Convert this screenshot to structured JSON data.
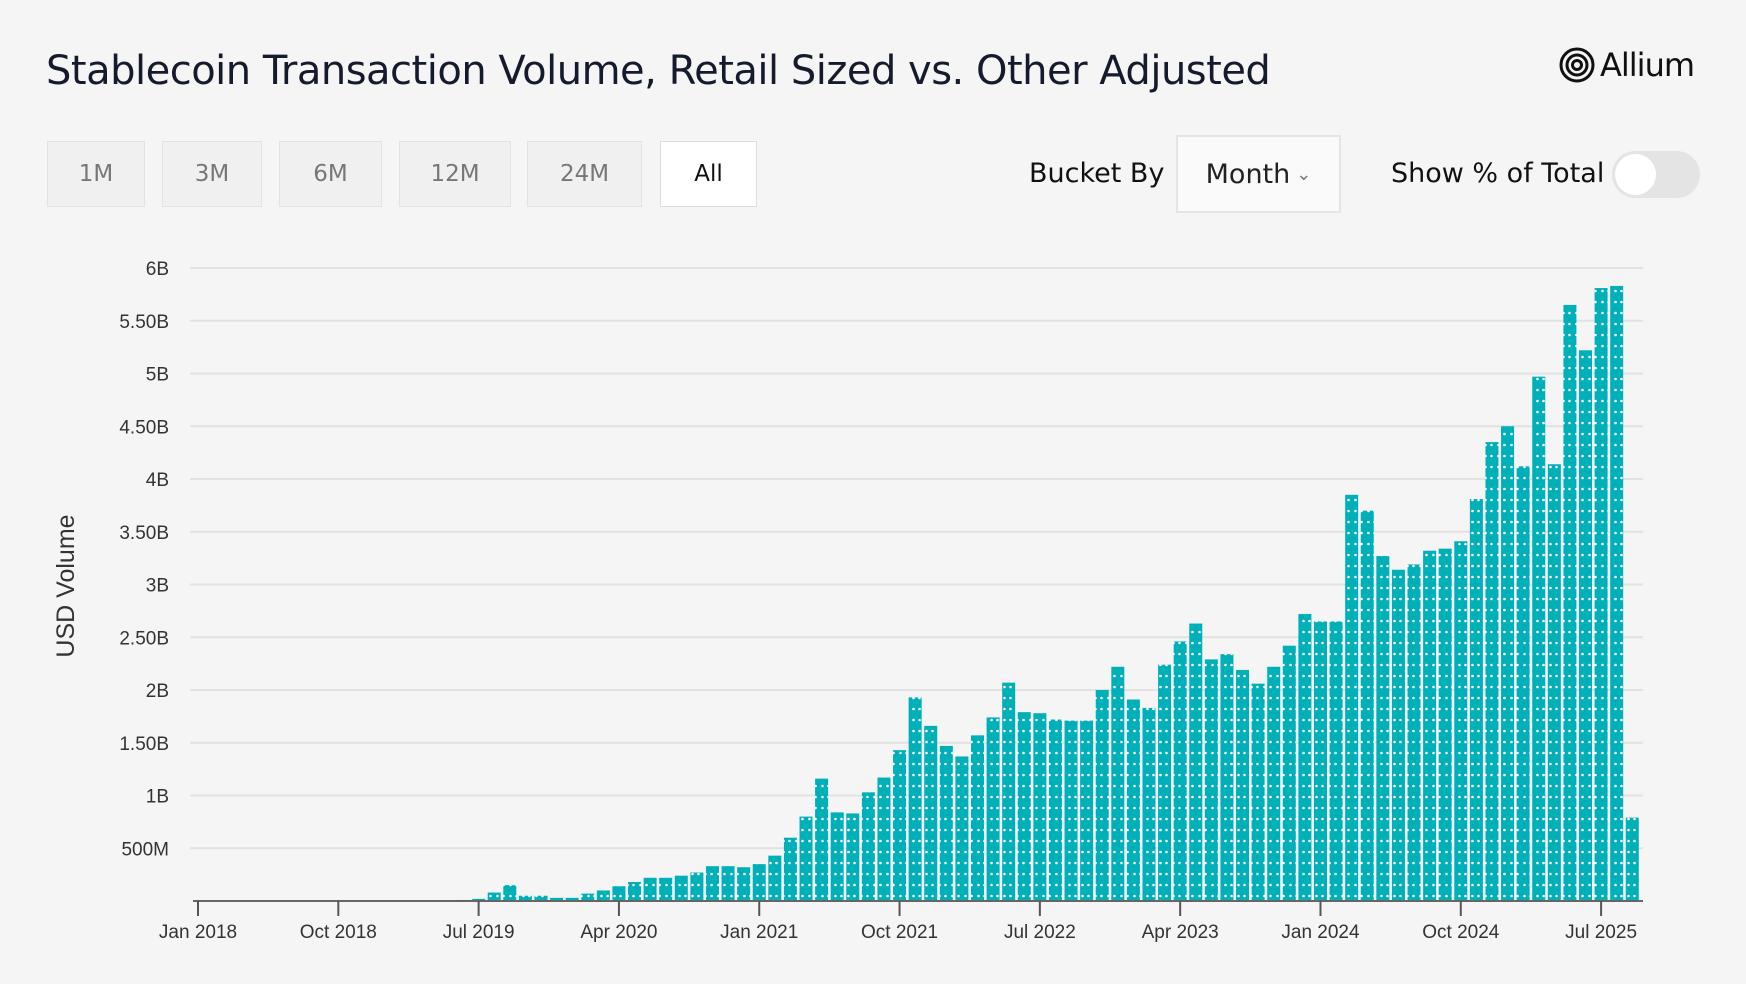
{
  "header": {
    "title": "Stablecoin Transaction Volume, Retail Sized vs. Other Adjusted",
    "logo_text": "Allium"
  },
  "controls": {
    "ranges": [
      {
        "label": "1M",
        "active": false
      },
      {
        "label": "3M",
        "active": false
      },
      {
        "label": "6M",
        "active": false
      },
      {
        "label": "12M",
        "active": false
      },
      {
        "label": "24M",
        "active": false
      },
      {
        "label": "All",
        "active": true
      }
    ],
    "bucket_label": "Bucket By",
    "bucket_value": "Month",
    "bucket_icon": "chevron-down-icon",
    "pct_label": "Show % of Total",
    "pct_toggle_on": false
  },
  "colors": {
    "bar": "#00b0b9",
    "background": "#f5f5f5",
    "grid": "#e2e2e2"
  },
  "chart_data": {
    "type": "bar",
    "title": "",
    "ylabel": "USD Volume",
    "xlabel": "",
    "ylim": [
      0,
      6000000000
    ],
    "grid": true,
    "y_ticks": [
      {
        "v": 500000000,
        "label": "500M"
      },
      {
        "v": 1000000000,
        "label": "1B"
      },
      {
        "v": 1500000000,
        "label": "1.50B"
      },
      {
        "v": 2000000000,
        "label": "2B"
      },
      {
        "v": 2500000000,
        "label": "2.50B"
      },
      {
        "v": 3000000000,
        "label": "3B"
      },
      {
        "v": 3500000000,
        "label": "3.50B"
      },
      {
        "v": 4000000000,
        "label": "4B"
      },
      {
        "v": 4500000000,
        "label": "4.50B"
      },
      {
        "v": 5000000000,
        "label": "5B"
      },
      {
        "v": 5500000000,
        "label": "5.50B"
      },
      {
        "v": 6000000000,
        "label": "6B"
      }
    ],
    "x_ticks": [
      "Jan 2018",
      "Oct 2018",
      "Jul 2019",
      "Apr 2020",
      "Jan 2021",
      "Oct 2021",
      "Jul 2022",
      "Apr 2023",
      "Jan 2024",
      "Oct 2024",
      "Jul 2025"
    ],
    "x_start": "2018-01",
    "unit": "billions USD",
    "values": [
      0,
      0,
      0,
      0,
      0,
      0,
      0,
      0,
      0,
      0,
      0,
      0,
      0,
      0,
      0,
      0.003,
      0.005,
      0.01,
      0.02,
      0.08,
      0.15,
      0.05,
      0.05,
      0.03,
      0.03,
      0.07,
      0.1,
      0.14,
      0.18,
      0.22,
      0.22,
      0.24,
      0.27,
      0.33,
      0.33,
      0.32,
      0.35,
      0.43,
      0.6,
      0.8,
      1.16,
      0.84,
      0.83,
      1.03,
      1.17,
      1.43,
      1.93,
      1.66,
      1.47,
      1.37,
      1.57,
      1.74,
      2.07,
      1.79,
      1.78,
      1.72,
      1.71,
      1.71,
      2.0,
      2.22,
      1.91,
      1.83,
      2.24,
      2.46,
      2.63,
      2.29,
      2.34,
      2.19,
      2.06,
      2.22,
      2.42,
      2.72,
      2.65,
      2.65,
      3.85,
      3.7,
      3.27,
      3.14,
      3.19,
      3.32,
      3.34,
      3.41,
      3.81,
      4.35,
      4.5,
      4.12,
      4.97,
      4.14,
      5.65,
      5.22,
      5.81,
      5.83,
      0.79
    ]
  }
}
